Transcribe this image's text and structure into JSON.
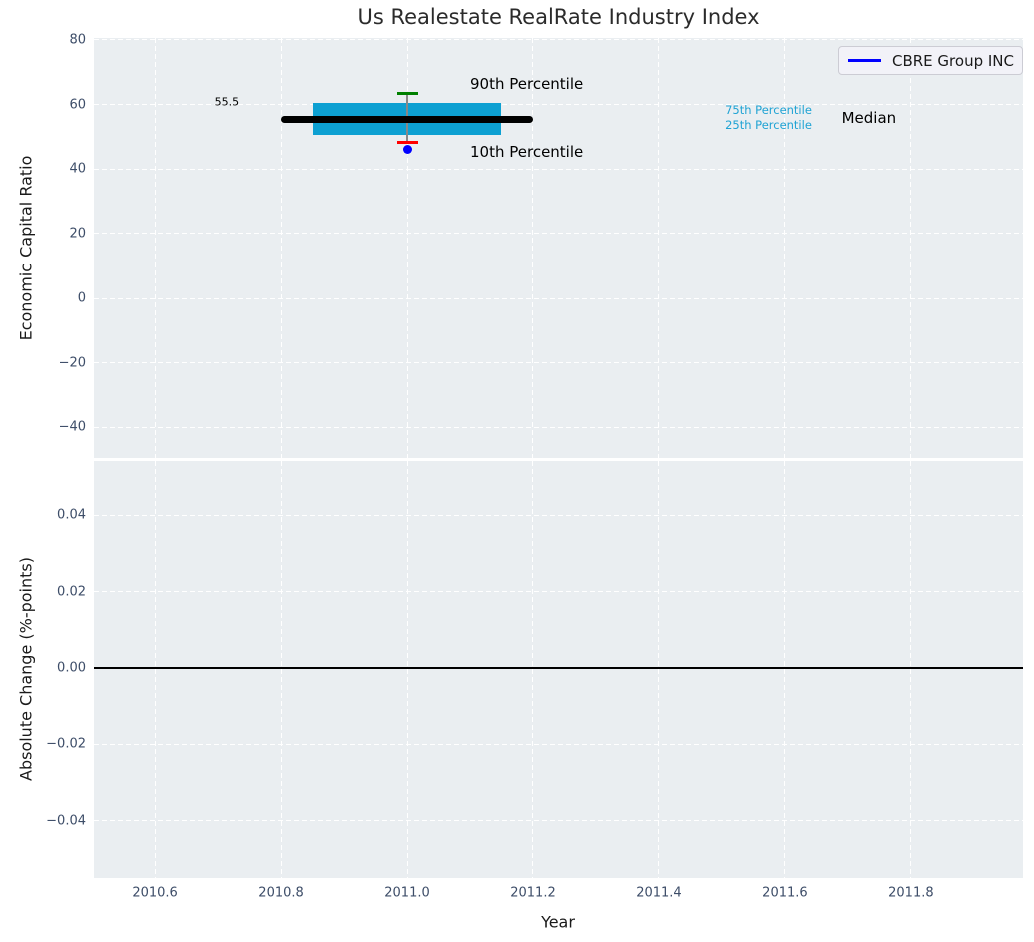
{
  "title": "Us Realestate RealRate Industry Index",
  "chart_data": [
    {
      "type": "box",
      "title": "Us Realestate RealRate Industry Index",
      "ylabel": "Economic Capital Ratio",
      "xlabel": "",
      "xlim": [
        2010.503,
        2011.978
      ],
      "ylim": [
        -49.6,
        80.62
      ],
      "xticks": [
        2010.6,
        2010.8,
        2011.0,
        2011.2,
        2011.4,
        2011.6,
        2011.8
      ],
      "yticks": [
        80,
        60,
        40,
        20,
        0,
        -20,
        -40
      ],
      "ytick_labels": [
        "80",
        "60",
        "40",
        "20",
        "0",
        "−20",
        "−40"
      ],
      "grid": "white-dashed",
      "legend": {
        "label": "CBRE Group INC",
        "position": "upper right",
        "line_color": "#0000ff"
      },
      "box": {
        "center_x": 2011.0,
        "box_left": 2010.85,
        "box_right": 2011.15,
        "median_left": 2010.8,
        "median_right": 2011.2,
        "p90": 63.5,
        "p75": 60.4,
        "median": 55.5,
        "p25": 50.5,
        "p10": 48.2,
        "median_label": "55.5",
        "box_color": "#0da0d2",
        "median_color": "#000000",
        "p90_color": "#008000",
        "p10_color": "#ff0000",
        "whisker_color": "#888888"
      },
      "series": [
        {
          "name": "CBRE Group INC",
          "x": [
            2011.0
          ],
          "y": [
            46.0
          ],
          "color": "#0000ff",
          "marker": "dot"
        }
      ],
      "annotations": [
        {
          "id": "median-value-label",
          "text": "55.5",
          "x": 2010.714,
          "y": 60.7,
          "color": "#000000",
          "size": 11,
          "anchor": "middle"
        },
        {
          "id": "p90-label",
          "text": "90th Percentile",
          "x": 2011.1,
          "y": 66.3,
          "color": "#000000",
          "size": 15,
          "anchor": "start"
        },
        {
          "id": "p10-label",
          "text": "10th Percentile",
          "x": 2011.1,
          "y": 45.4,
          "color": "#000000",
          "size": 15,
          "anchor": "start"
        },
        {
          "id": "p75-label",
          "text": "75th Percentile",
          "x": 2011.505,
          "y": 58.2,
          "color": "#1fa3d4",
          "size": 11.5,
          "anchor": "start"
        },
        {
          "id": "p25-label",
          "text": "25th Percentile",
          "x": 2011.505,
          "y": 53.8,
          "color": "#1fa3d4",
          "size": 11.5,
          "anchor": "start"
        },
        {
          "id": "median-text-label",
          "text": "Median",
          "x": 2011.69,
          "y": 55.7,
          "color": "#000000",
          "size": 15,
          "anchor": "start"
        }
      ]
    },
    {
      "type": "line",
      "title": "",
      "ylabel": "Absolute Change (%-points)",
      "xlabel": "Year",
      "xlim": [
        2010.503,
        2011.978
      ],
      "ylim": [
        -0.05505,
        0.05426
      ],
      "xticks": [
        2010.6,
        2010.8,
        2011.0,
        2011.2,
        2011.4,
        2011.6,
        2011.8
      ],
      "xtick_labels": [
        "2010.6",
        "2010.8",
        "2011.0",
        "2011.2",
        "2011.4",
        "2011.6",
        "2011.8"
      ],
      "yticks": [
        0.04,
        0.02,
        0,
        -0.02,
        -0.04
      ],
      "ytick_labels": [
        "0.04",
        "0.02",
        "0.00",
        "−0.02",
        "−0.04"
      ],
      "grid": "white-dashed",
      "zero_line": {
        "y": 0.0,
        "color": "#000000"
      }
    }
  ],
  "colors": {
    "plot_background": "#eaeef1",
    "gridline": "#ffffff",
    "tick_label": "#3d4d68",
    "box_fill": "#0da0d2",
    "company_marker": "#0000ff"
  }
}
